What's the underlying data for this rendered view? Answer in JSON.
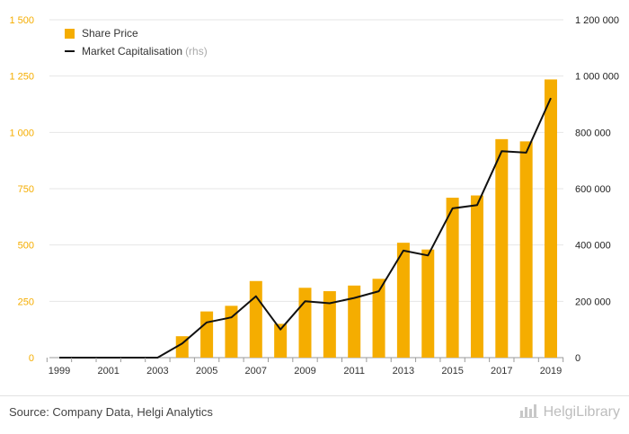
{
  "chart_data": {
    "type": "bar+line",
    "x": [
      "1999",
      "2000",
      "2001",
      "2002",
      "2003",
      "2004",
      "2005",
      "2006",
      "2007",
      "2008",
      "2009",
      "2010",
      "2011",
      "2012",
      "2013",
      "2014",
      "2015",
      "2016",
      "2017",
      "2018",
      "2019"
    ],
    "x_tick_labels": [
      "1999",
      "2001",
      "2003",
      "2005",
      "2007",
      "2009",
      "2011",
      "2013",
      "2015",
      "2017",
      "2019"
    ],
    "series": [
      {
        "name": "Share Price",
        "type": "bar",
        "axis": "left",
        "color": "#F5AD00",
        "values": [
          0,
          0,
          0,
          0,
          0,
          95,
          205,
          230,
          340,
          150,
          310,
          295,
          320,
          350,
          510,
          480,
          710,
          720,
          970,
          960,
          1235
        ]
      },
      {
        "name": "Market Capitalisation",
        "name_note": "(rhs)",
        "type": "line",
        "axis": "right",
        "color": "#111111",
        "values": [
          0,
          0,
          0,
          0,
          0,
          50000,
          125000,
          143000,
          218000,
          100000,
          200000,
          193000,
          212000,
          236000,
          380000,
          363000,
          530000,
          542000,
          733000,
          728000,
          922000
        ]
      }
    ],
    "y_left": {
      "ylim": [
        0,
        1500
      ],
      "ticks": [
        0,
        250,
        500,
        750,
        1000,
        1250,
        1500
      ],
      "tick_labels": [
        "0",
        "250",
        "500",
        "750",
        "1 000",
        "1 250",
        "1 500"
      ],
      "tick_color": "#F5AD00"
    },
    "y_right": {
      "ylim": [
        0,
        1200000
      ],
      "ticks": [
        0,
        200000,
        400000,
        600000,
        800000,
        1000000,
        1200000
      ],
      "tick_labels": [
        "0",
        "200 000",
        "400 000",
        "600 000",
        "800 000",
        "1 000 000",
        "1 200 000"
      ]
    },
    "grid": true,
    "legend_placement": "top-left"
  },
  "footer": {
    "source": "Source: Company Data, Helgi Analytics",
    "brand": "HelgiLibrary",
    "brand_icon": "bar-chart-icon"
  }
}
